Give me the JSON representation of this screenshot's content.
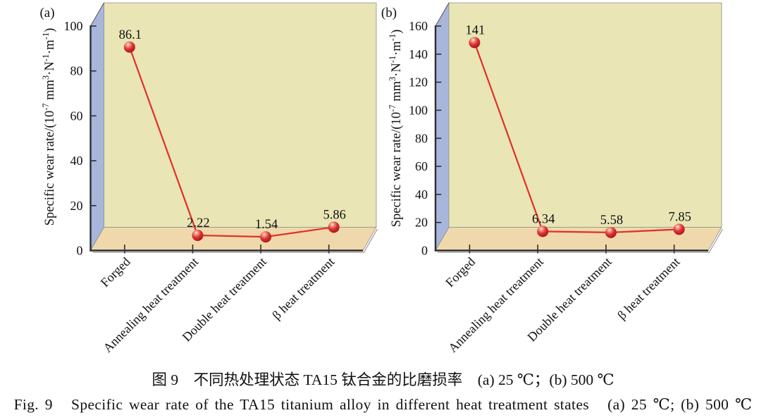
{
  "caption": {
    "zh": "图 9　不同热处理状态 TA15 钛合金的比磨损率　(a) 25 ℃；(b) 500 ℃",
    "en": "Fig. 9   Specific wear rate of the TA15 titanium alloy in different heat treatment states   (a) 25 ℃; (b) 500 ℃"
  },
  "chart_data": [
    {
      "type": "line",
      "panel_label": "(a)",
      "categories": [
        "Forged",
        "Annealing heat treatment",
        "Double heat treatment",
        "β heat treatment"
      ],
      "values": [
        86.1,
        2.22,
        1.54,
        5.86
      ],
      "point_labels": [
        "86.1",
        "2.22",
        "1.54",
        "5.86"
      ],
      "ylabel": "Specific wear rate/(10⁻⁷ mm³·N⁻¹·m⁻¹)",
      "ylabel_parts": [
        {
          "text": "Specific wear rate/(10"
        },
        {
          "text": "-7",
          "sup": true
        },
        {
          "text": " mm"
        },
        {
          "text": "3",
          "sup": true
        },
        {
          "text": "·N"
        },
        {
          "text": "-1",
          "sup": true
        },
        {
          "text": "·m"
        },
        {
          "text": "-1",
          "sup": true
        },
        {
          "text": ")"
        }
      ],
      "ylim": [
        0,
        100
      ],
      "ytick_step": 20,
      "yticks": [
        "0",
        "20",
        "40",
        "60",
        "80",
        "100"
      ],
      "grid": false,
      "legend": null
    },
    {
      "type": "line",
      "panel_label": "(b)",
      "categories": [
        "Forged",
        "Annealing heat treatment",
        "Double heat treatment",
        "β heat treatment"
      ],
      "values": [
        141,
        6.34,
        5.58,
        7.85
      ],
      "point_labels": [
        "141",
        "6.34",
        "5.58",
        "7.85"
      ],
      "ylabel": "Specific wear rate/(10⁻⁷ mm³·N⁻¹·m⁻¹)",
      "ylabel_parts": [
        {
          "text": "Specific wear rate/(10"
        },
        {
          "text": "-7",
          "sup": true
        },
        {
          "text": " mm"
        },
        {
          "text": "3",
          "sup": true
        },
        {
          "text": "·N"
        },
        {
          "text": "-1",
          "sup": true
        },
        {
          "text": "·m"
        },
        {
          "text": "-1",
          "sup": true
        },
        {
          "text": ")"
        }
      ],
      "ylim": [
        0,
        160
      ],
      "ytick_step": 20,
      "yticks": [
        "0",
        "20",
        "40",
        "60",
        "80",
        "100",
        "120",
        "140",
        "160"
      ],
      "grid": false,
      "legend": null
    }
  ],
  "style": {
    "wall_back_color": "#e9e5b5",
    "wall_left_color": "#a9b6dc",
    "floor_color": "#efd9ac",
    "line_color": "#e03028",
    "marker_color": "#c91f27",
    "axis_color": "#333333",
    "text_color": "#111111"
  }
}
